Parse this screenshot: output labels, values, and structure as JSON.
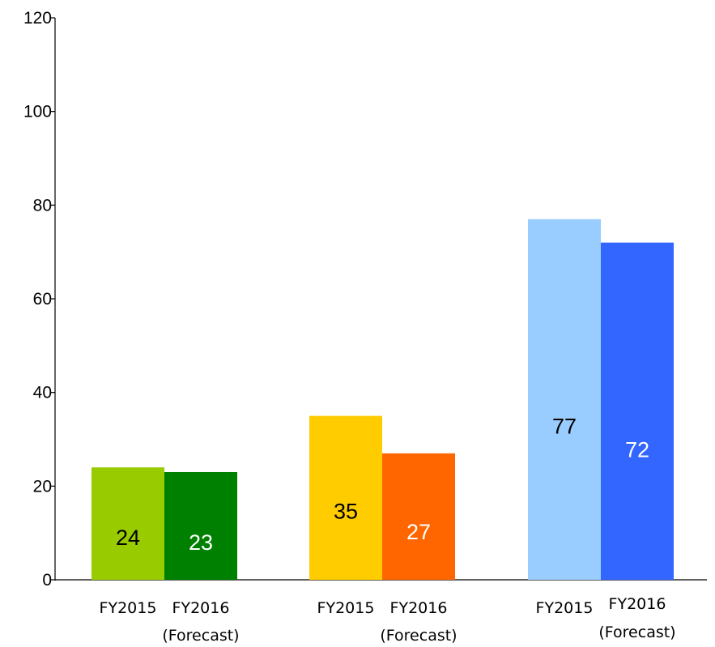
{
  "chart_data": {
    "type": "bar",
    "title": "",
    "xlabel": "",
    "ylabel": "",
    "ylim": [
      0,
      120
    ],
    "yticks": [
      0,
      20,
      40,
      60,
      80,
      100,
      120
    ],
    "grid": false,
    "groups": [
      {
        "bars": [
          {
            "label": [
              "FY2015"
            ],
            "value": 24,
            "value_label": "24",
            "color": "#99cc00",
            "label_color": "#000000"
          },
          {
            "label": [
              "FY2016",
              "(Forecast)"
            ],
            "value": 23,
            "value_label": "23",
            "color": "#008000",
            "label_color": "#ffffff"
          }
        ]
      },
      {
        "bars": [
          {
            "label": [
              "FY2015"
            ],
            "value": 35,
            "value_label": "35",
            "color": "#ffcc00",
            "label_color": "#000000"
          },
          {
            "label": [
              "FY2016",
              "(Forecast)"
            ],
            "value": 27,
            "value_label": "27",
            "color": "#ff6600",
            "label_color": "#ffffff"
          }
        ]
      },
      {
        "bars": [
          {
            "label": [
              "FY2015"
            ],
            "value": 77,
            "value_label": "77",
            "color": "#99ccff",
            "label_color": "#000000"
          },
          {
            "label": [
              "FY2016",
              "(Forecast)"
            ],
            "value": 72,
            "value_label": "72",
            "color": "#3366ff",
            "label_color": "#ffffff"
          }
        ]
      }
    ]
  }
}
